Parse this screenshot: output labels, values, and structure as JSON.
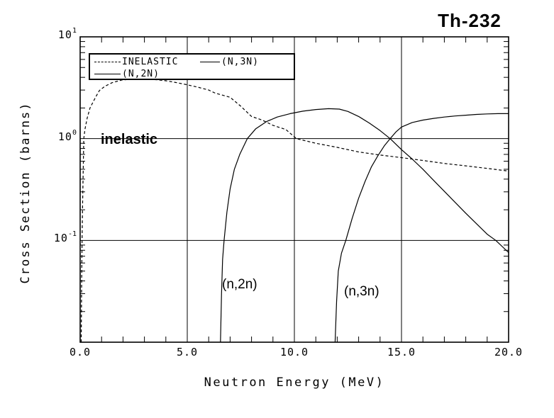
{
  "title": "Th-232",
  "colors": {
    "ink": "#000000",
    "background": "#ffffff"
  },
  "legend": {
    "entries": [
      {
        "label": "INELASTIC",
        "style": "dashed"
      },
      {
        "label": "(N,3N)",
        "style": "solid"
      },
      {
        "label": "(N,2N)",
        "style": "solid"
      }
    ]
  },
  "annotations": [
    {
      "text": "inelastic"
    },
    {
      "text": "(n,2n)"
    },
    {
      "text": "(n,3n)"
    }
  ],
  "axes": {
    "x": {
      "label": "Neutron Energy (MeV)",
      "min": 0,
      "max": 20,
      "minor_step": 1,
      "ticks": [
        {
          "value": 0,
          "label": "0.0"
        },
        {
          "value": 5,
          "label": "5.0"
        },
        {
          "value": 10,
          "label": "10.0"
        },
        {
          "value": 15,
          "label": "15.0"
        },
        {
          "value": 20,
          "label": "20.0"
        }
      ]
    },
    "y": {
      "label": "Cross Section (barns)",
      "scale": "log",
      "min": 0.01,
      "max": 10,
      "ticks": [
        {
          "value": 10,
          "base": "10",
          "exp": "1"
        },
        {
          "value": 1,
          "base": "10",
          "exp": "0"
        },
        {
          "value": 0.1,
          "base": "10",
          "exp": "-1"
        }
      ]
    }
  },
  "chart_data": {
    "type": "line",
    "title": "Th-232",
    "xlabel": "Neutron Energy (MeV)",
    "ylabel": "Cross Section (barns)",
    "x_range": [
      0,
      20
    ],
    "y_range": [
      0.01,
      10
    ],
    "y_scale": "log",
    "x_gridlines": [
      5,
      10,
      15
    ],
    "y_gridlines": [
      1,
      0.1
    ],
    "legend_position": "top-left",
    "series": [
      {
        "name": "INELASTIC",
        "style": "dashed",
        "points": [
          [
            0.05,
            0.01
          ],
          [
            0.07,
            0.04
          ],
          [
            0.09,
            0.1
          ],
          [
            0.11,
            0.2
          ],
          [
            0.14,
            0.45
          ],
          [
            0.17,
            1.0
          ],
          [
            0.23,
            1.25
          ],
          [
            0.33,
            1.6
          ],
          [
            0.46,
            2.0
          ],
          [
            0.56,
            2.2
          ],
          [
            0.73,
            2.57
          ],
          [
            0.9,
            2.97
          ],
          [
            1.16,
            3.27
          ],
          [
            1.5,
            3.55
          ],
          [
            1.95,
            3.77
          ],
          [
            2.5,
            3.85
          ],
          [
            3.2,
            3.85
          ],
          [
            3.6,
            3.78
          ],
          [
            4.0,
            3.7
          ],
          [
            4.5,
            3.55
          ],
          [
            5.0,
            3.38
          ],
          [
            5.5,
            3.2
          ],
          [
            6.0,
            3.0
          ],
          [
            6.3,
            2.8
          ],
          [
            7.0,
            2.55
          ],
          [
            7.5,
            2.08
          ],
          [
            8.0,
            1.65
          ],
          [
            8.5,
            1.52
          ],
          [
            9.0,
            1.35
          ],
          [
            9.6,
            1.23
          ],
          [
            10.1,
            1.0
          ],
          [
            11.0,
            0.9
          ],
          [
            12.0,
            0.82
          ],
          [
            13.0,
            0.74
          ],
          [
            14.0,
            0.69
          ],
          [
            15.0,
            0.65
          ],
          [
            16.0,
            0.61
          ],
          [
            17.0,
            0.57
          ],
          [
            18.0,
            0.54
          ],
          [
            19.0,
            0.51
          ],
          [
            20.0,
            0.48
          ]
        ]
      },
      {
        "name": "(N,2N)",
        "style": "solid",
        "points": [
          [
            6.55,
            0.01
          ],
          [
            6.6,
            0.03
          ],
          [
            6.65,
            0.065
          ],
          [
            6.72,
            0.1
          ],
          [
            6.85,
            0.19
          ],
          [
            7.0,
            0.32
          ],
          [
            7.2,
            0.5
          ],
          [
            7.45,
            0.7
          ],
          [
            7.8,
            1.0
          ],
          [
            8.2,
            1.25
          ],
          [
            8.7,
            1.47
          ],
          [
            9.2,
            1.63
          ],
          [
            9.8,
            1.76
          ],
          [
            10.4,
            1.86
          ],
          [
            11.0,
            1.93
          ],
          [
            11.6,
            1.97
          ],
          [
            12.1,
            1.95
          ],
          [
            12.5,
            1.85
          ],
          [
            13.0,
            1.65
          ],
          [
            13.5,
            1.42
          ],
          [
            14.0,
            1.2
          ],
          [
            14.47,
            1.0
          ],
          [
            15.0,
            0.78
          ],
          [
            15.5,
            0.63
          ],
          [
            16.0,
            0.5
          ],
          [
            16.6,
            0.37
          ],
          [
            17.2,
            0.275
          ],
          [
            18.0,
            0.185
          ],
          [
            19.0,
            0.115
          ],
          [
            19.4,
            0.1
          ],
          [
            20.0,
            0.076
          ]
        ]
      },
      {
        "name": "(N,3N)",
        "style": "solid",
        "points": [
          [
            11.9,
            0.01
          ],
          [
            11.97,
            0.025
          ],
          [
            12.05,
            0.05
          ],
          [
            12.2,
            0.075
          ],
          [
            12.4,
            0.1
          ],
          [
            12.7,
            0.165
          ],
          [
            13.0,
            0.26
          ],
          [
            13.3,
            0.38
          ],
          [
            13.6,
            0.53
          ],
          [
            13.9,
            0.68
          ],
          [
            14.2,
            0.85
          ],
          [
            14.47,
            1.0
          ],
          [
            14.75,
            1.17
          ],
          [
            15.0,
            1.3
          ],
          [
            15.5,
            1.44
          ],
          [
            16.0,
            1.52
          ],
          [
            16.5,
            1.58
          ],
          [
            17.0,
            1.63
          ],
          [
            17.5,
            1.67
          ],
          [
            18.0,
            1.7
          ],
          [
            18.5,
            1.73
          ],
          [
            19.0,
            1.75
          ],
          [
            19.5,
            1.76
          ],
          [
            20.0,
            1.76
          ]
        ]
      }
    ]
  }
}
